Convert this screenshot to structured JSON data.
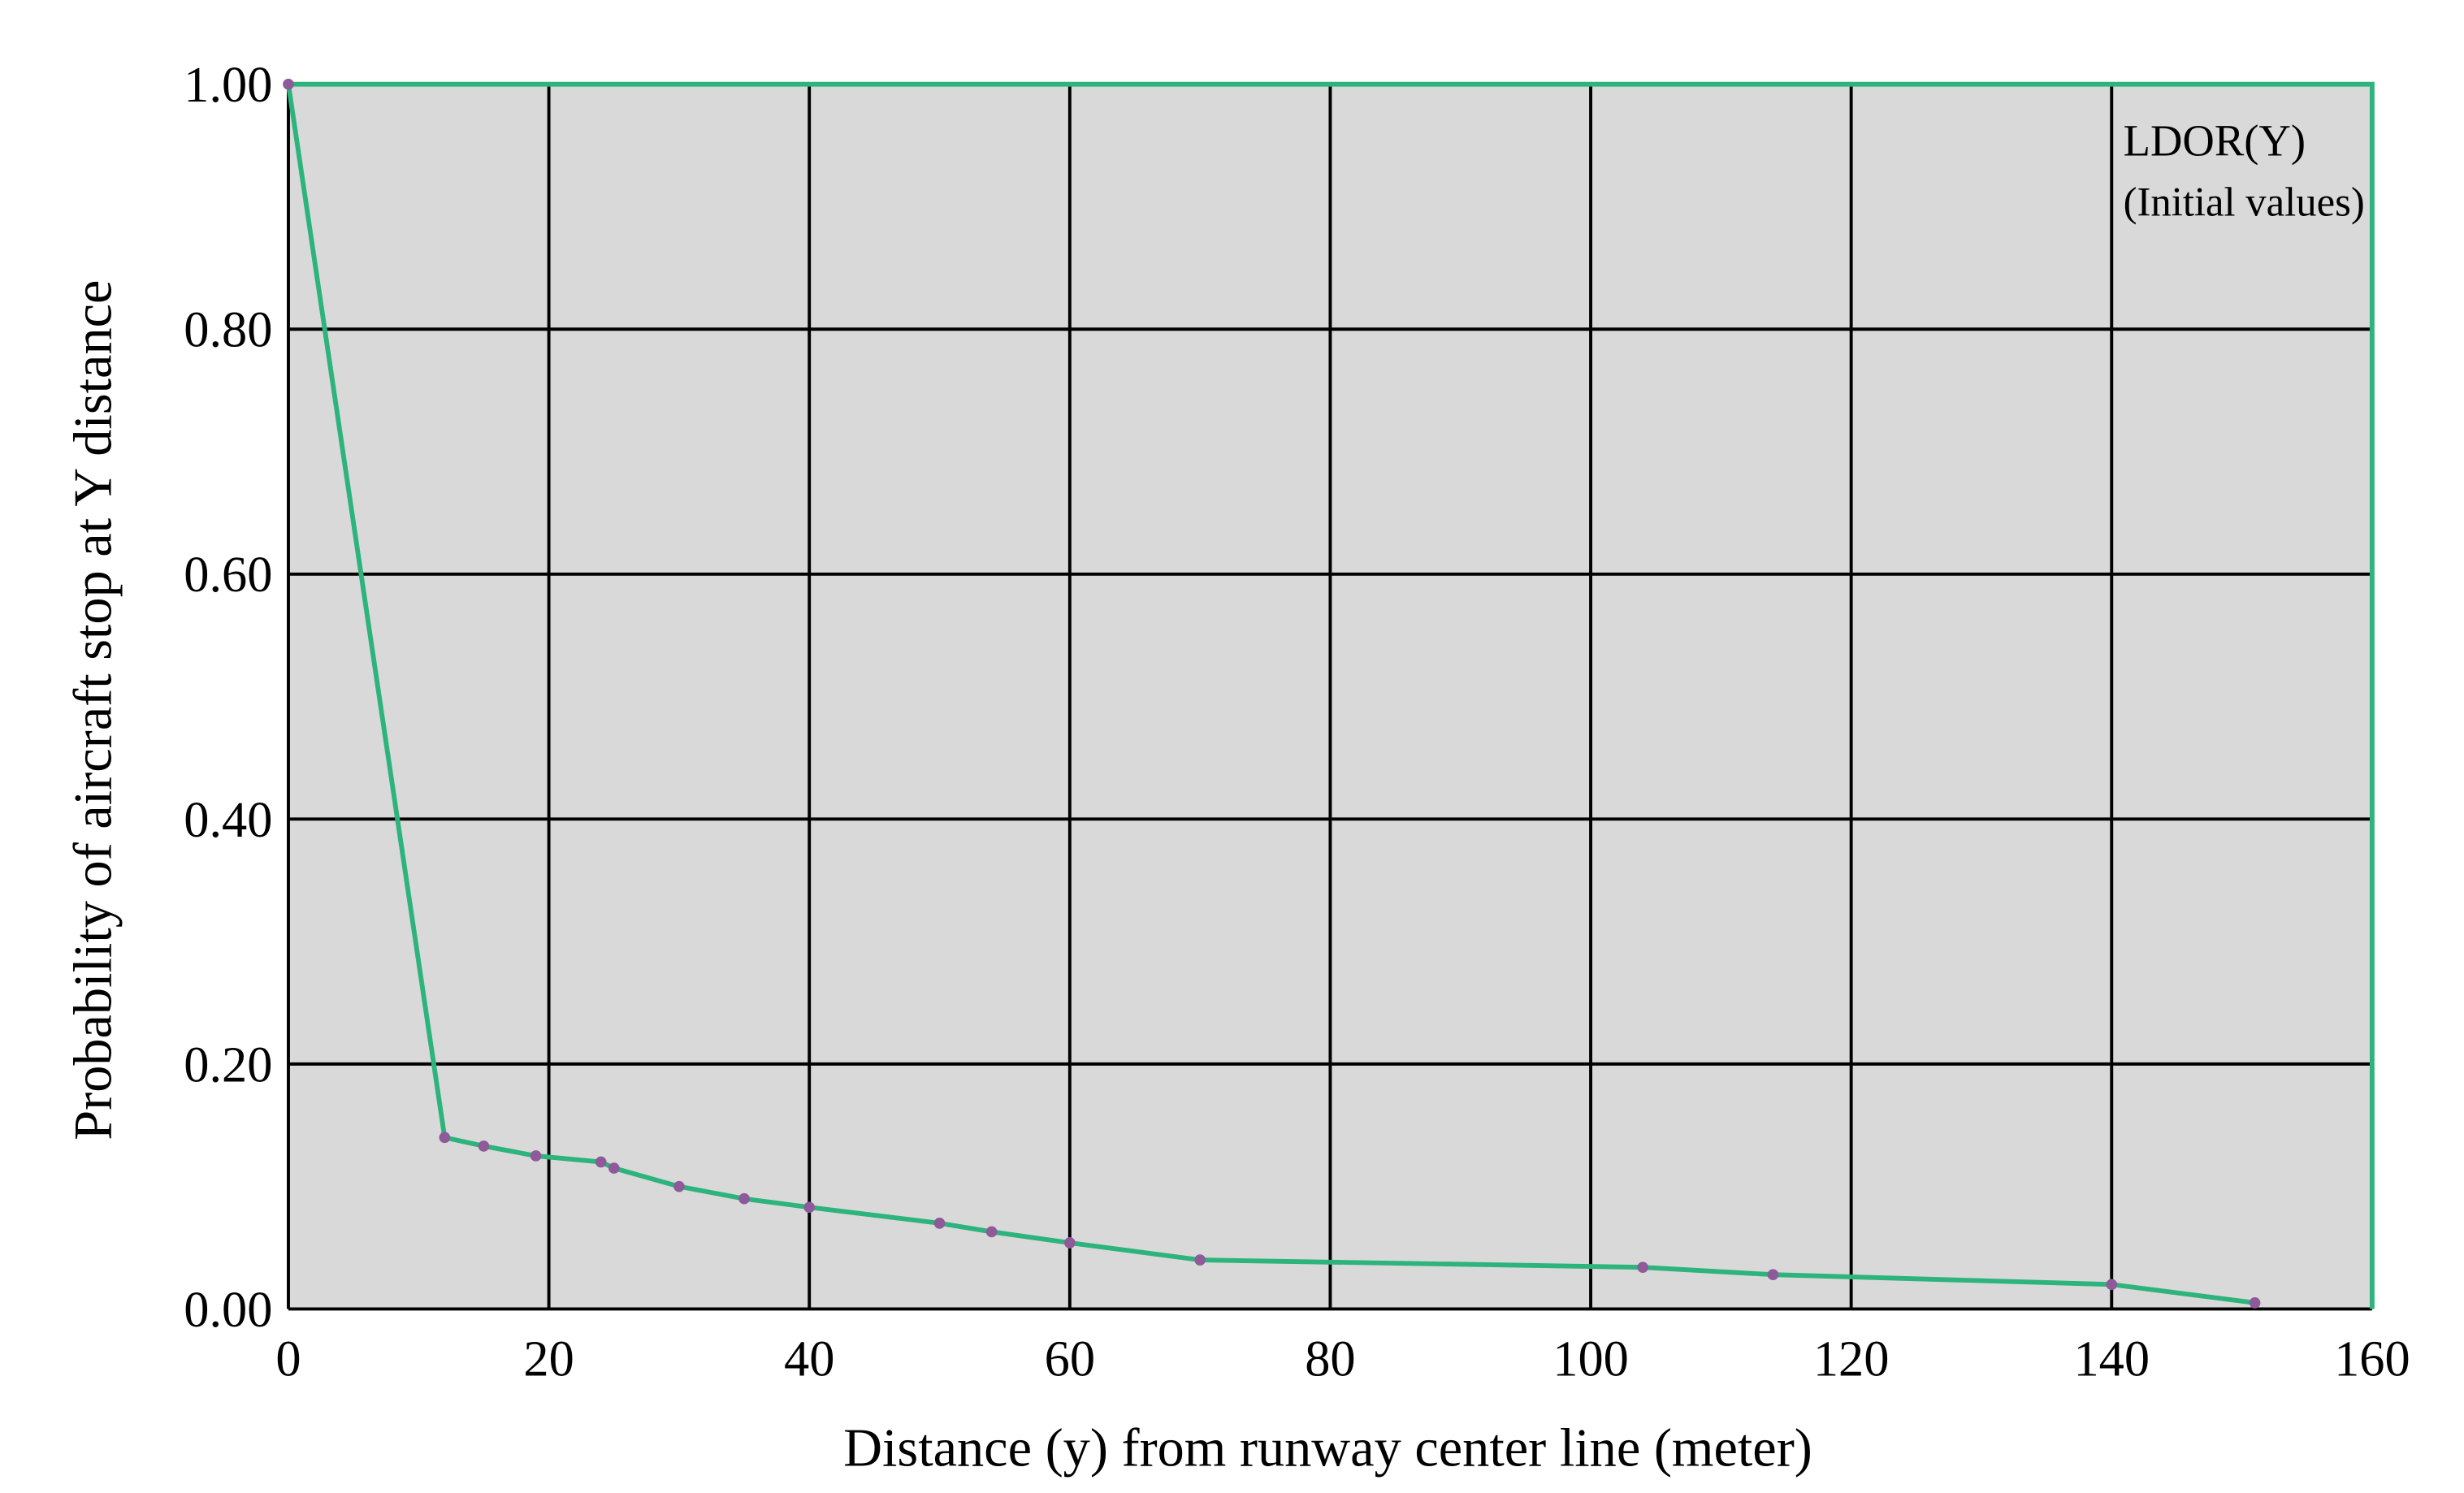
{
  "chart_data": {
    "type": "line",
    "xlabel": "Distance (y) from runway center line (meter)",
    "ylabel": "Probability of aircraft stop at Y distance",
    "annotations": [
      "LDOR(Y)",
      "(Initial values)"
    ],
    "x": [
      0,
      12,
      15,
      19,
      24,
      25,
      30,
      35,
      40,
      50,
      54,
      60,
      70,
      104,
      114,
      140,
      151
    ],
    "series": [
      {
        "color": "#2db37c",
        "marker_color": "#8e5a9a",
        "values": [
          1.0,
          0.14,
          0.133,
          0.125,
          0.12,
          0.115,
          0.1,
          0.09,
          0.083,
          0.07,
          0.063,
          0.054,
          0.04,
          0.034,
          0.028,
          0.02,
          0.005
        ]
      }
    ],
    "xlim": [
      0,
      160
    ],
    "xticks": [
      0,
      20,
      40,
      60,
      80,
      100,
      120,
      140,
      160
    ],
    "ylim": [
      0,
      1
    ],
    "yticks": [
      {
        "value": 0,
        "label": "0.00"
      },
      {
        "value": 0.2,
        "label": "0.20"
      },
      {
        "value": 0.4,
        "label": "0.40"
      },
      {
        "value": 0.6,
        "label": "0.60"
      },
      {
        "value": 0.8,
        "label": "0.80"
      },
      {
        "value": 1,
        "label": "1.00"
      }
    ],
    "grid": true
  }
}
